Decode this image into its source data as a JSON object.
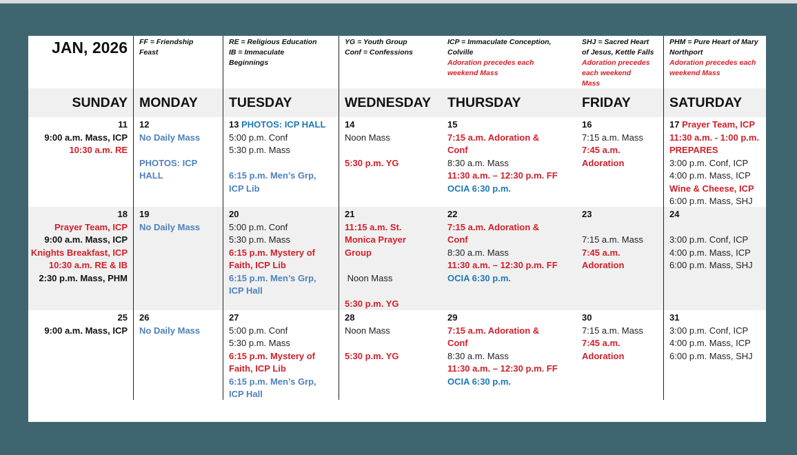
{
  "month_title": "JAN, 2026",
  "colors": {
    "background": "#3f6670",
    "red": "#d0202a",
    "blue": "#4f81bd",
    "teal": "#1f78b4"
  },
  "legend": {
    "monday": [
      "FF = Friendship",
      "Feast"
    ],
    "tuesday": [
      "RE = Religious Education",
      "IB = Immaculate",
      "Beginnings"
    ],
    "wednesday": [
      "YG = Youth Group",
      "Conf = Confessions"
    ],
    "thursday": [
      "ICP = Immaculate Conception,",
      "Colville"
    ],
    "thursday_note": [
      "Adoration precedes each",
      "weekend Mass"
    ],
    "friday": [
      "SHJ = Sacred Heart",
      "of Jesus, Kettle Falls"
    ],
    "friday_note": [
      "Adoration precedes",
      "each weekend",
      "Mass"
    ],
    "saturday": [
      "PHM = Pure Heart of Mary",
      "Northport"
    ],
    "saturday_note": [
      "Adoration precedes each",
      "weekend Mass"
    ]
  },
  "day_names": [
    "SUNDAY",
    "MONDAY",
    "TUESDAY",
    "WEDNESDAY",
    "THURSDAY",
    "FRIDAY",
    "SATURDAY"
  ],
  "weeks": [
    [
      {
        "day": "11",
        "lines": [
          {
            "t": "9:00 a.m. Mass, ICP",
            "c": "k"
          },
          {
            "t": "10:30 a.m. RE",
            "c": "r"
          }
        ]
      },
      {
        "day": "12",
        "lines": [
          {
            "t": "No Daily Mass",
            "c": "b"
          },
          {
            "t": "",
            "c": "n"
          },
          {
            "t": "PHOTOS: ICP",
            "c": "b"
          },
          {
            "t": "HALL",
            "c": "b"
          }
        ]
      },
      {
        "day": "13",
        "head": {
          "t": "PHOTOS: ICP HALL",
          "c": "t"
        },
        "lines": [
          {
            "t": "5:00 p.m. Conf",
            "c": "n"
          },
          {
            "t": "5:30 p.m. Mass",
            "c": "n"
          },
          {
            "t": "",
            "c": "n"
          },
          {
            "t": "6:15 p.m. Men’s Grp,",
            "c": "b"
          },
          {
            "t": "ICP Lib",
            "c": "b"
          }
        ]
      },
      {
        "day": "14",
        "lines": [
          {
            "t": "Noon Mass",
            "c": "n"
          },
          {
            "t": "",
            "c": "n"
          },
          {
            "t": "5:30 p.m. YG",
            "c": "r"
          }
        ]
      },
      {
        "day": "15",
        "lines": [
          {
            "t": "7:15 a.m. Adoration &",
            "c": "r"
          },
          {
            "t": "Conf",
            "c": "r"
          },
          {
            "t": "8:30 a.m. Mass",
            "c": "n"
          },
          {
            "t": "11:30 a.m. – 12:30 p.m. FF",
            "c": "r"
          },
          {
            "t": "OCIA 6:30 p.m.",
            "c": "t"
          }
        ]
      },
      {
        "day": "16",
        "lines": [
          {
            "t": "7:15 a.m. Mass",
            "c": "n"
          },
          {
            "t": "7:45 a.m.",
            "c": "r"
          },
          {
            "t": "Adoration",
            "c": "r"
          }
        ]
      },
      {
        "day": "17",
        "head": {
          "t": "Prayer Team, ICP",
          "c": "r"
        },
        "lines": [
          {
            "t": "11:30 a.m. - 1:00 p.m.",
            "c": "r"
          },
          {
            "t": "PREPARES",
            "c": "r"
          },
          {
            "t": "3:00 p.m. Conf, ICP",
            "c": "n"
          },
          {
            "t": "4:00 p.m. Mass, ICP",
            "c": "n"
          },
          {
            "t": "Wine & Cheese, ICP",
            "c": "r"
          },
          {
            "t": "6:00 p.m. Mass, SHJ",
            "c": "n"
          }
        ]
      }
    ],
    [
      {
        "day": "18",
        "lines": [
          {
            "t": "Prayer Team, ICP",
            "c": "r"
          },
          {
            "t": "9:00 a.m. Mass, ICP",
            "c": "k"
          },
          {
            "t": "Knights Breakfast, ICP",
            "c": "r"
          },
          {
            "t": "10:30 a.m. RE & IB",
            "c": "r"
          },
          {
            "t": "2:30 p.m. Mass, PHM",
            "c": "k"
          }
        ]
      },
      {
        "day": "19",
        "lines": [
          {
            "t": "No Daily Mass",
            "c": "b"
          }
        ]
      },
      {
        "day": "20",
        "lines": [
          {
            "t": "5:00 p.m. Conf",
            "c": "n"
          },
          {
            "t": "5:30 p.m. Mass",
            "c": "n"
          },
          {
            "t": "6:15 p.m. Mystery of",
            "c": "r"
          },
          {
            "t": "Faith, ICP Lib",
            "c": "r"
          },
          {
            "t": "6:15 p.m. Men’s Grp,",
            "c": "b"
          },
          {
            "t": "ICP Hall",
            "c": "b"
          }
        ]
      },
      {
        "day": "21",
        "lines": [
          {
            "t": "11:15 a.m. St.",
            "c": "r"
          },
          {
            "t": "Monica Prayer",
            "c": "r"
          },
          {
            "t": "Group",
            "c": "r"
          },
          {
            "t": "",
            "c": "n"
          },
          {
            "t": " Noon Mass",
            "c": "n"
          },
          {
            "t": "",
            "c": "n"
          },
          {
            "t": "5:30 p.m. YG",
            "c": "r"
          }
        ]
      },
      {
        "day": "22",
        "lines": [
          {
            "t": "7:15 a.m. Adoration &",
            "c": "r"
          },
          {
            "t": "Conf",
            "c": "r"
          },
          {
            "t": "8:30 a.m. Mass",
            "c": "n"
          },
          {
            "t": "11:30 a.m. – 12:30 p.m. FF",
            "c": "r"
          },
          {
            "t": "OCIA 6:30 p.m.",
            "c": "t"
          }
        ]
      },
      {
        "day": "23",
        "lines": [
          {
            "t": "",
            "c": "n"
          },
          {
            "t": "7:15 a.m. Mass",
            "c": "n"
          },
          {
            "t": "7:45 a.m.",
            "c": "r"
          },
          {
            "t": "Adoration",
            "c": "r"
          }
        ]
      },
      {
        "day": "24",
        "lines": [
          {
            "t": "",
            "c": "n"
          },
          {
            "t": "3:00 p.m. Conf, ICP",
            "c": "n"
          },
          {
            "t": "4:00 p.m. Mass, ICP",
            "c": "n"
          },
          {
            "t": "6:00 p.m. Mass, SHJ",
            "c": "n"
          }
        ]
      }
    ],
    [
      {
        "day": "25",
        "lines": [
          {
            "t": "9:00 a.m. Mass, ICP",
            "c": "k"
          }
        ]
      },
      {
        "day": "26",
        "lines": [
          {
            "t": "No Daily Mass",
            "c": "b"
          }
        ]
      },
      {
        "day": "27",
        "lines": [
          {
            "t": "5:00 p.m. Conf",
            "c": "n"
          },
          {
            "t": "5:30 p.m. Mass",
            "c": "n"
          },
          {
            "t": "6:15 p.m. Mystery of",
            "c": "r"
          },
          {
            "t": "Faith, ICP Lib",
            "c": "r"
          },
          {
            "t": "6:15 p.m. Men’s Grp,",
            "c": "b"
          },
          {
            "t": "ICP Hall",
            "c": "b"
          }
        ]
      },
      {
        "day": "28",
        "lines": [
          {
            "t": "Noon Mass",
            "c": "n"
          },
          {
            "t": "",
            "c": "n"
          },
          {
            "t": "5:30 p.m. YG",
            "c": "r"
          }
        ]
      },
      {
        "day": "29",
        "lines": [
          {
            "t": "7:15 a.m. Adoration &",
            "c": "r"
          },
          {
            "t": "Conf",
            "c": "r"
          },
          {
            "t": "8:30 a.m. Mass",
            "c": "n"
          },
          {
            "t": "11:30 a.m. – 12:30 p.m. FF",
            "c": "r"
          },
          {
            "t": "OCIA 6:30 p.m.",
            "c": "t"
          }
        ]
      },
      {
        "day": "30",
        "lines": [
          {
            "t": "7:15 a.m. Mass",
            "c": "n"
          },
          {
            "t": "7:45 a.m.",
            "c": "r"
          },
          {
            "t": "Adoration",
            "c": "r"
          }
        ]
      },
      {
        "day": "31",
        "lines": [
          {
            "t": "3:00 p.m. Conf, ICP",
            "c": "n"
          },
          {
            "t": "4:00 p.m. Mass, ICP",
            "c": "n"
          },
          {
            "t": "6:00 p.m. Mass, SHJ",
            "c": "n"
          }
        ]
      }
    ]
  ]
}
